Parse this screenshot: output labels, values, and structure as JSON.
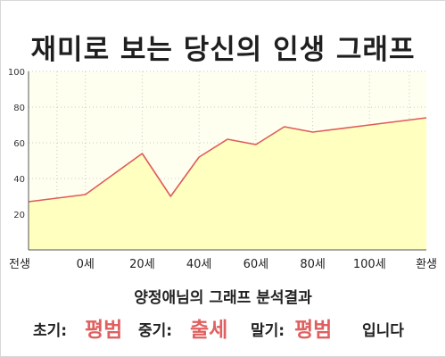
{
  "chart_data": {
    "type": "area",
    "title": "재미로 보는 당신의 인생 그래프",
    "x_labels": [
      "전생",
      "0세",
      "20세",
      "40세",
      "60세",
      "80세",
      "100세",
      "환생"
    ],
    "x_positions": [
      -10,
      0,
      20,
      40,
      60,
      80,
      100,
      114
    ],
    "xlim": [
      -20,
      120
    ],
    "ylim": [
      0,
      100
    ],
    "y_ticks": [
      20,
      40,
      60,
      80,
      100
    ],
    "points": [
      {
        "x": -20,
        "y": 27
      },
      {
        "x": -10,
        "y": 29
      },
      {
        "x": 0,
        "y": 31
      },
      {
        "x": 20,
        "y": 54
      },
      {
        "x": 30,
        "y": 30
      },
      {
        "x": 40,
        "y": 52
      },
      {
        "x": 50,
        "y": 62
      },
      {
        "x": 60,
        "y": 59
      },
      {
        "x": 70,
        "y": 69
      },
      {
        "x": 80,
        "y": 66
      },
      {
        "x": 100,
        "y": 70
      },
      {
        "x": 120,
        "y": 74
      }
    ],
    "line_color": "#e05a5a",
    "fill_color": "#ffffc0",
    "plot_background": "#fffff0",
    "grid": true
  },
  "summary_title": "양정애님의 그래프 분석결과",
  "result": {
    "early_label": "초기:",
    "early_value": "평범",
    "middle_label": "중기:",
    "middle_value": "출세",
    "late_label": "말기:",
    "late_value": "평범",
    "ending": "입니다"
  }
}
